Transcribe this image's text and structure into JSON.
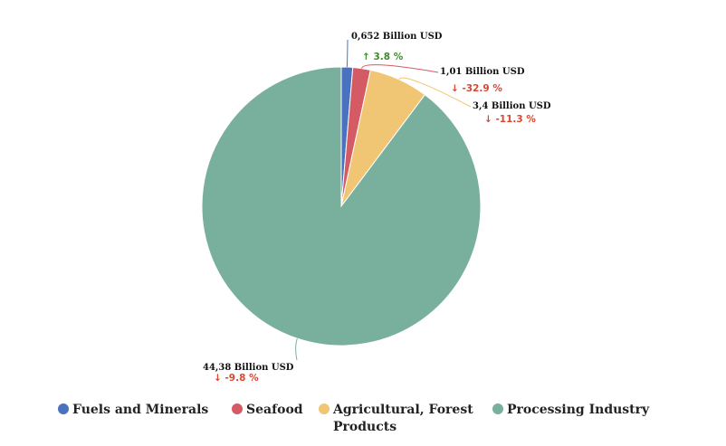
{
  "chart_data": {
    "type": "pie",
    "categories": [
      "Fuels and Minerals",
      "Seafood",
      "Agricultural, Forest Products",
      "Processing Industry"
    ],
    "values": [
      0.652,
      1.01,
      3.4,
      44.38
    ],
    "value_labels": [
      "0,652 Billion USD",
      "1,01 Billion USD",
      "3,4 Billion USD",
      "44,38 Billion USD"
    ],
    "change_labels": [
      "↑ 3.8 %",
      "↓ -32.9 %",
      "↓ -11.3 %",
      "↓ -9.8 %"
    ],
    "change_colors": [
      "#3f8a2a",
      "#e0452f",
      "#e0452f",
      "#e0452f"
    ],
    "colors": [
      "#4a72c0",
      "#d45a63",
      "#f0c674",
      "#78b09d"
    ]
  }
}
